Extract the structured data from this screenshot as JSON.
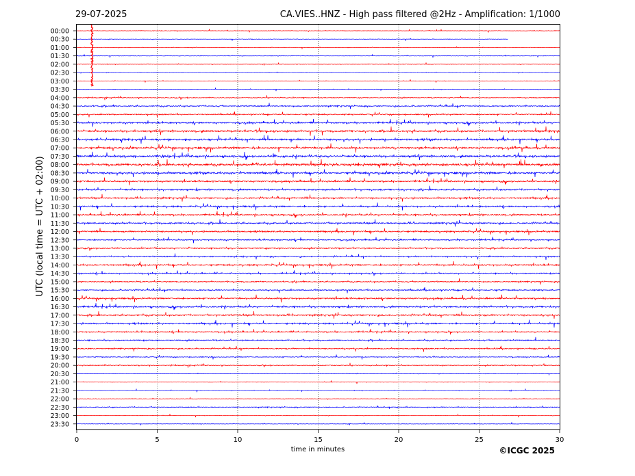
{
  "header": {
    "date": "29-07-2025",
    "title": "CA.VIES..HNZ - High pass filtered @2Hz - Amplification: 1/1000"
  },
  "copyright": "©ICGC 2025",
  "chart_data": {
    "type": "line",
    "title": "CA.VIES..HNZ - High pass filtered @2Hz - Amplification: 1/1000",
    "xlabel": "time in minutes",
    "ylabel": "UTC (local time = UTC + 02:00)",
    "xlim": [
      0,
      30
    ],
    "xticks": [
      0,
      5,
      10,
      15,
      20,
      25,
      30
    ],
    "grid": "vertical dotted lines at x = 5, 10, 15, 20, 25",
    "row_labels": [
      "00:00",
      "00:30",
      "01:00",
      "01:30",
      "02:00",
      "02:30",
      "03:00",
      "03:30",
      "04:00",
      "04:30",
      "05:00",
      "05:30",
      "06:00",
      "06:30",
      "07:00",
      "07:30",
      "08:00",
      "08:30",
      "09:00",
      "09:30",
      "10:00",
      "10:30",
      "11:00",
      "11:30",
      "12:00",
      "12:30",
      "13:00",
      "13:30",
      "14:00",
      "14:30",
      "15:00",
      "15:30",
      "16:00",
      "16:30",
      "17:00",
      "17:30",
      "18:00",
      "18:30",
      "19:00",
      "19:30",
      "20:00",
      "20:30",
      "21:00",
      "21:30",
      "22:00",
      "22:30",
      "23:00",
      "23:30"
    ],
    "row_colors": [
      "#ff0000",
      "#0000ff"
    ],
    "trace_activity": [
      1,
      1,
      1,
      1,
      1,
      1,
      1,
      1,
      2,
      3,
      3,
      4,
      5,
      5,
      5,
      5,
      6,
      5,
      4,
      4,
      4,
      4,
      4,
      4,
      4,
      3,
      3,
      3,
      4,
      3,
      3,
      3,
      4,
      4,
      4,
      4,
      3,
      3,
      3,
      2,
      2,
      1,
      1,
      1,
      1,
      2,
      1,
      1
    ],
    "trace_end_minute": [
      30,
      26.8,
      30,
      30,
      30,
      30,
      30,
      30,
      30,
      30,
      30,
      30,
      30,
      30,
      30,
      30,
      30,
      30,
      30,
      30,
      30,
      30,
      30,
      30,
      30,
      30,
      30,
      30,
      30,
      30,
      30,
      30,
      30,
      30,
      30,
      30,
      30,
      30,
      30,
      30,
      30,
      30,
      30,
      30,
      30,
      30,
      30,
      30
    ],
    "large_event": {
      "minute": 0.95,
      "from_row": "00:00",
      "to_row": "03:30",
      "color": "#ff0000"
    }
  }
}
